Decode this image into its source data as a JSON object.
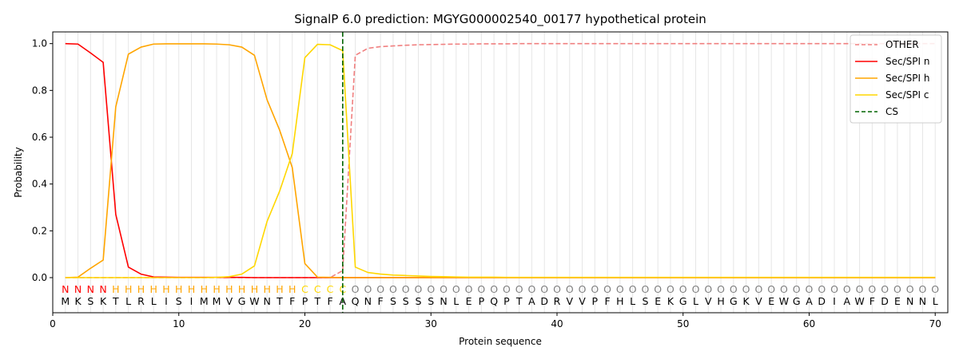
{
  "chart_data": {
    "type": "line",
    "title": "SignalP 6.0 prediction: MGYG000002540_00177 hypothetical protein",
    "xlabel": "Protein sequence",
    "ylabel": "Probability",
    "xlim": [
      0,
      71
    ],
    "ylim": [
      -0.15,
      1.05
    ],
    "x_ticks": [
      0,
      10,
      20,
      30,
      40,
      50,
      60,
      70
    ],
    "y_ticks": [
      0.0,
      0.2,
      0.4,
      0.6,
      0.8,
      1.0
    ],
    "x_tick_labels": [
      "0",
      "10",
      "20",
      "30",
      "40",
      "50",
      "60",
      "70"
    ],
    "y_tick_labels": [
      "0.0",
      "0.2",
      "0.4",
      "0.6",
      "0.8",
      "1.0"
    ],
    "grid": "vertical lines at every residue",
    "legend_position": "top-right",
    "sequence": [
      "M",
      "K",
      "S",
      "K",
      "T",
      "L",
      "R",
      "L",
      "I",
      "S",
      "I",
      "M",
      "M",
      "V",
      "G",
      "W",
      "N",
      "T",
      "F",
      "P",
      "T",
      "F",
      "A",
      "Q",
      "N",
      "F",
      "S",
      "S",
      "S",
      "S",
      "N",
      "L",
      "E",
      "P",
      "Q",
      "P",
      "T",
      "A",
      "D",
      "R",
      "V",
      "V",
      "P",
      "F",
      "H",
      "L",
      "S",
      "E",
      "K",
      "G",
      "L",
      "V",
      "H",
      "G",
      "K",
      "V",
      "E",
      "W",
      "G",
      "A",
      "D",
      "I",
      "A",
      "W",
      "F",
      "D",
      "E",
      "N",
      "N",
      "L"
    ],
    "region_labels": [
      "N",
      "N",
      "N",
      "N",
      "H",
      "H",
      "H",
      "H",
      "H",
      "H",
      "H",
      "H",
      "H",
      "H",
      "H",
      "H",
      "H",
      "H",
      "H",
      "C",
      "C",
      "C",
      "C",
      "O",
      "O",
      "O",
      "O",
      "O",
      "O",
      "O",
      "O",
      "O",
      "O",
      "O",
      "O",
      "O",
      "O",
      "O",
      "O",
      "O",
      "O",
      "O",
      "O",
      "O",
      "O",
      "O",
      "O",
      "O",
      "O",
      "O",
      "O",
      "O",
      "O",
      "O",
      "O",
      "O",
      "O",
      "O",
      "O",
      "O",
      "O",
      "O",
      "O",
      "O",
      "O",
      "O",
      "O",
      "O",
      "O",
      "O"
    ],
    "region_colors": {
      "N": "#ff0000",
      "H": "#ffa500",
      "C": "#ffd700",
      "O": "#808080"
    },
    "series": [
      {
        "name": "OTHER",
        "color": "#f08080",
        "dash": "dashed",
        "values": [
          0.0,
          0.0,
          0.0,
          0.0,
          0.0,
          0.0,
          0.0,
          0.0,
          0.0,
          0.0,
          0.0,
          0.0,
          0.0,
          0.0,
          0.0,
          0.0,
          0.0,
          0.0,
          0.0,
          0.0,
          0.0,
          0.0,
          0.03,
          0.95,
          0.98,
          0.987,
          0.99,
          0.993,
          0.995,
          0.996,
          0.997,
          0.998,
          0.998,
          0.999,
          0.999,
          0.999,
          1.0,
          1.0,
          1.0,
          1.0,
          1.0,
          1.0,
          1.0,
          1.0,
          1.0,
          1.0,
          1.0,
          1.0,
          1.0,
          1.0,
          1.0,
          1.0,
          1.0,
          1.0,
          1.0,
          1.0,
          1.0,
          1.0,
          1.0,
          1.0,
          1.0,
          1.0,
          1.0,
          1.0,
          1.0,
          1.0,
          1.0,
          1.0,
          1.0,
          1.0
        ]
      },
      {
        "name": "Sec/SPI n",
        "color": "#ff0000",
        "dash": "solid",
        "values": [
          1.0,
          0.998,
          0.96,
          0.92,
          0.27,
          0.045,
          0.015,
          0.003,
          0.002,
          0.001,
          0.001,
          0.001,
          0.001,
          0.001,
          0.001,
          0.0,
          0.0,
          0.0,
          0.0,
          0.0,
          0.0,
          0.0,
          0.0,
          0.0,
          0.0,
          0.0,
          0.0,
          0.0,
          0.0,
          0.0,
          0.0,
          0.0,
          0.0,
          0.0,
          0.0,
          0.0,
          0.0,
          0.0,
          0.0,
          0.0,
          0.0,
          0.0,
          0.0,
          0.0,
          0.0,
          0.0,
          0.0,
          0.0,
          0.0,
          0.0,
          0.0,
          0.0,
          0.0,
          0.0,
          0.0,
          0.0,
          0.0,
          0.0,
          0.0,
          0.0,
          0.0,
          0.0,
          0.0,
          0.0,
          0.0,
          0.0,
          0.0,
          0.0,
          0.0,
          0.0
        ]
      },
      {
        "name": "Sec/SPI h",
        "color": "#ffa500",
        "dash": "solid",
        "values": [
          0.0,
          0.002,
          0.04,
          0.075,
          0.73,
          0.955,
          0.985,
          0.998,
          0.999,
          0.999,
          0.999,
          0.999,
          0.998,
          0.995,
          0.985,
          0.95,
          0.76,
          0.63,
          0.47,
          0.06,
          0.002,
          0.001,
          0.0,
          0.0,
          0.0,
          0.0,
          0.0,
          0.0,
          0.0,
          0.0,
          0.0,
          0.0,
          0.0,
          0.0,
          0.0,
          0.0,
          0.0,
          0.0,
          0.0,
          0.0,
          0.0,
          0.0,
          0.0,
          0.0,
          0.0,
          0.0,
          0.0,
          0.0,
          0.0,
          0.0,
          0.0,
          0.0,
          0.0,
          0.0,
          0.0,
          0.0,
          0.0,
          0.0,
          0.0,
          0.0,
          0.0,
          0.0,
          0.0,
          0.0,
          0.0,
          0.0,
          0.0,
          0.0,
          0.0,
          0.0
        ]
      },
      {
        "name": "Sec/SPI c",
        "color": "#ffd700",
        "dash": "solid",
        "values": [
          0.0,
          0.0,
          0.0,
          0.0,
          0.0,
          0.0,
          0.0,
          0.0,
          0.0,
          0.0,
          0.0,
          0.0,
          0.001,
          0.004,
          0.015,
          0.05,
          0.24,
          0.37,
          0.53,
          0.94,
          0.997,
          0.995,
          0.97,
          0.045,
          0.022,
          0.015,
          0.011,
          0.009,
          0.007,
          0.005,
          0.004,
          0.003,
          0.002,
          0.002,
          0.002,
          0.001,
          0.001,
          0.001,
          0.001,
          0.001,
          0.001,
          0.001,
          0.001,
          0.001,
          0.001,
          0.001,
          0.001,
          0.001,
          0.001,
          0.001,
          0.001,
          0.001,
          0.001,
          0.001,
          0.001,
          0.001,
          0.001,
          0.001,
          0.001,
          0.001,
          0.001,
          0.001,
          0.001,
          0.001,
          0.001,
          0.001,
          0.001,
          0.001,
          0.001,
          0.001
        ]
      }
    ],
    "cs": {
      "name": "CS",
      "x": 23,
      "color": "#006400",
      "dash": "dashed"
    }
  }
}
